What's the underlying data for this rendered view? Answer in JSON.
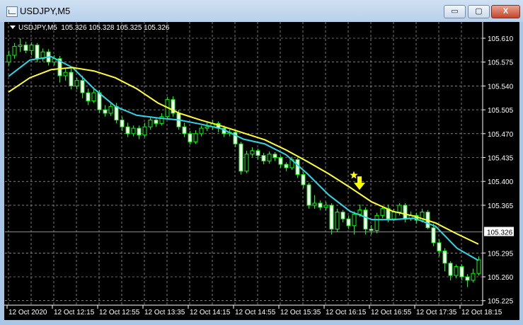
{
  "window": {
    "title": "USDJPY,M5",
    "buttons": {
      "minimize": "▭",
      "maximize": "▢",
      "close": "X"
    }
  },
  "header": {
    "symbol": "USDJPY,M5",
    "ohlc": "105.326 105.328 105.325 105.326"
  },
  "colors": {
    "background": "#000000",
    "grid": "#c8c8c8",
    "candle_outline": "#00ff00",
    "bear_body": "#ffffff",
    "bull_body": "#000000",
    "ma_fast": "#2fd6e6",
    "ma_slow": "#ffff33",
    "marker": "#ffff00"
  },
  "chart_data": {
    "type": "candlestick",
    "symbol": "USDJPY",
    "timeframe": "M5",
    "grid": true,
    "ylim": [
      105.2225,
      105.6425
    ],
    "price_ticks": [
      "105.610",
      "105.575",
      "105.540",
      "105.505",
      "105.470",
      "105.435",
      "105.400",
      "105.365",
      "105.295",
      "105.260",
      "105.225"
    ],
    "current_price": "105.326",
    "time_labels": [
      "12 Oct 2020",
      "12 Oct 12:15",
      "12 Oct 12:55",
      "12 Oct 13:35",
      "12 Oct 14:15",
      "12 Oct 14:55",
      "12 Oct 15:35",
      "12 Oct 16:15",
      "12 Oct 16:55",
      "12 Oct 17:35",
      "12 Oct 18:15"
    ],
    "bars_per_time_label": 8,
    "candles_ohlc": [
      [
        105.575,
        105.592,
        105.57,
        105.585
      ],
      [
        105.585,
        105.603,
        105.58,
        105.598
      ],
      [
        105.598,
        105.61,
        105.59,
        105.6
      ],
      [
        105.6,
        105.605,
        105.588,
        105.592
      ],
      [
        105.592,
        105.604,
        105.585,
        105.6
      ],
      [
        105.6,
        105.603,
        105.575,
        105.58
      ],
      [
        105.58,
        105.595,
        105.576,
        105.59
      ],
      [
        105.59,
        105.594,
        105.57,
        105.575
      ],
      [
        105.575,
        105.585,
        105.57,
        105.58
      ],
      [
        105.58,
        105.584,
        105.545,
        105.555
      ],
      [
        105.555,
        105.565,
        105.548,
        105.56
      ],
      [
        105.56,
        105.566,
        105.535,
        105.54
      ],
      [
        105.54,
        105.552,
        105.535,
        105.548
      ],
      [
        105.548,
        105.555,
        105.522,
        105.53
      ],
      [
        105.53,
        105.536,
        105.512,
        105.518
      ],
      [
        105.518,
        105.538,
        105.515,
        105.53
      ],
      [
        105.53,
        105.534,
        105.5,
        105.505
      ],
      [
        105.505,
        105.512,
        105.495,
        105.5
      ],
      [
        105.5,
        105.514,
        105.496,
        105.51
      ],
      [
        105.51,
        105.515,
        105.485,
        105.49
      ],
      [
        105.49,
        105.495,
        105.474,
        105.48
      ],
      [
        105.48,
        105.486,
        105.465,
        105.47
      ],
      [
        105.47,
        105.482,
        105.466,
        105.478
      ],
      [
        105.478,
        105.482,
        105.462,
        105.468
      ],
      [
        105.468,
        105.486,
        105.465,
        105.48
      ],
      [
        105.48,
        105.494,
        105.476,
        105.49
      ],
      [
        105.49,
        105.494,
        105.48,
        105.485
      ],
      [
        105.485,
        105.5,
        105.482,
        105.495
      ],
      [
        105.495,
        105.524,
        105.492,
        105.52
      ],
      [
        105.52,
        105.525,
        105.495,
        105.5
      ],
      [
        105.5,
        105.505,
        105.476,
        105.48
      ],
      [
        105.48,
        105.486,
        105.465,
        105.47
      ],
      [
        105.47,
        105.474,
        105.454,
        105.458
      ],
      [
        105.458,
        105.475,
        105.455,
        105.47
      ],
      [
        105.47,
        105.482,
        105.466,
        105.478
      ],
      [
        105.478,
        105.486,
        105.474,
        105.48
      ],
      [
        105.48,
        105.49,
        105.476,
        105.485
      ],
      [
        105.485,
        105.488,
        105.472,
        105.478
      ],
      [
        105.478,
        105.482,
        105.465,
        105.47
      ],
      [
        105.47,
        105.476,
        105.466,
        105.472
      ],
      [
        105.472,
        105.476,
        105.45,
        105.455
      ],
      [
        105.455,
        105.458,
        105.41,
        105.415
      ],
      [
        105.415,
        105.445,
        105.412,
        105.44
      ],
      [
        105.44,
        105.45,
        105.436,
        105.445
      ],
      [
        105.445,
        105.448,
        105.432,
        105.438
      ],
      [
        105.438,
        105.442,
        105.425,
        105.43
      ],
      [
        105.43,
        105.444,
        105.426,
        105.44
      ],
      [
        105.44,
        105.443,
        105.43,
        105.435
      ],
      [
        105.435,
        105.438,
        105.42,
        105.425
      ],
      [
        105.425,
        105.428,
        105.415,
        105.42
      ],
      [
        105.42,
        105.436,
        105.417,
        105.432
      ],
      [
        105.432,
        105.435,
        105.405,
        105.41
      ],
      [
        105.41,
        105.414,
        105.39,
        105.395
      ],
      [
        105.395,
        105.398,
        105.36,
        105.365
      ],
      [
        105.365,
        105.38,
        105.36,
        105.368
      ],
      [
        105.368,
        105.372,
        105.358,
        105.362
      ],
      [
        105.362,
        105.37,
        105.358,
        105.365
      ],
      [
        105.365,
        105.368,
        105.322,
        105.33
      ],
      [
        105.33,
        105.36,
        105.326,
        105.355
      ],
      [
        105.355,
        105.358,
        105.34,
        105.345
      ],
      [
        105.345,
        105.35,
        105.33,
        105.335
      ],
      [
        105.335,
        105.356,
        105.322,
        105.352
      ],
      [
        105.352,
        105.366,
        105.348,
        105.358
      ],
      [
        105.358,
        105.362,
        105.322,
        105.33
      ],
      [
        105.33,
        105.336,
        105.322,
        105.328
      ],
      [
        105.328,
        105.354,
        105.324,
        105.35
      ],
      [
        105.35,
        105.364,
        105.346,
        105.36
      ],
      [
        105.36,
        105.366,
        105.34,
        105.345
      ],
      [
        105.345,
        105.36,
        105.342,
        105.355
      ],
      [
        105.355,
        105.368,
        105.35,
        105.365
      ],
      [
        105.365,
        105.368,
        105.34,
        105.345
      ],
      [
        105.345,
        105.356,
        105.342,
        105.35
      ],
      [
        105.35,
        105.354,
        105.338,
        105.343
      ],
      [
        105.343,
        105.36,
        105.34,
        105.355
      ],
      [
        105.355,
        105.358,
        105.33,
        105.332
      ],
      [
        105.332,
        105.338,
        105.305,
        105.31
      ],
      [
        105.31,
        105.315,
        105.29,
        105.298
      ],
      [
        105.298,
        105.302,
        105.268,
        105.28
      ],
      [
        105.28,
        105.283,
        105.255,
        105.262
      ],
      [
        105.262,
        105.278,
        105.258,
        105.275
      ],
      [
        105.275,
        105.278,
        105.255,
        105.26
      ],
      [
        105.26,
        105.264,
        105.245,
        105.255
      ],
      [
        105.255,
        105.272,
        105.252,
        105.265
      ],
      [
        105.265,
        105.29,
        105.262,
        105.285
      ]
    ],
    "ma_fast": [
      105.554,
      105.578,
      105.583,
      105.567,
      105.536,
      105.51,
      105.497,
      105.493,
      105.49,
      105.484,
      105.477,
      105.462,
      105.455,
      105.439,
      105.411,
      105.38,
      105.356,
      105.344,
      105.344,
      105.346,
      105.334,
      105.302,
      105.284
    ],
    "ma_slow": [
      105.531,
      105.552,
      105.564,
      105.567,
      105.562,
      105.552,
      105.536,
      105.515,
      105.5,
      105.49,
      105.481,
      105.471,
      105.461,
      105.446,
      105.429,
      105.411,
      105.391,
      105.37,
      105.356,
      105.349,
      105.339,
      105.323,
      105.308
    ],
    "markers": [
      {
        "type": "star",
        "bar": 61,
        "price": 105.409
      },
      {
        "type": "sell-arrow",
        "bar": 62,
        "price": 105.397
      }
    ]
  }
}
